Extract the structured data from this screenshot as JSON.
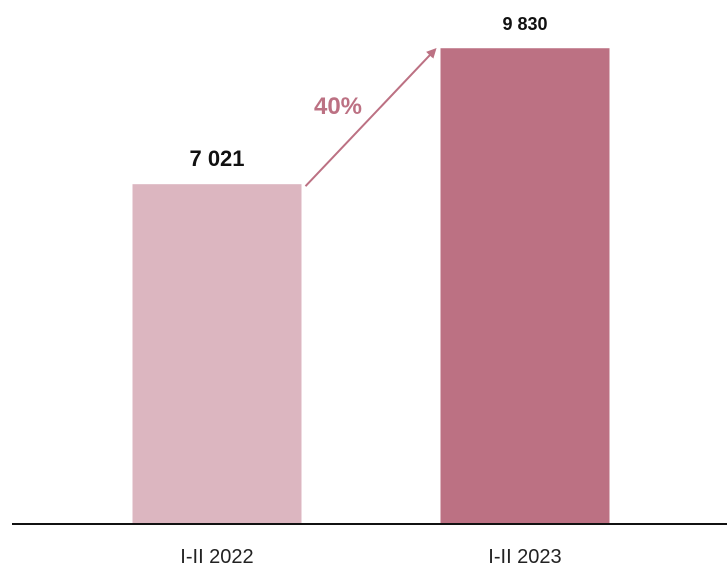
{
  "chart_data": {
    "type": "bar",
    "categories": [
      "I-II 2022",
      "I-II 2023"
    ],
    "values": [
      7021,
      9830
    ],
    "value_labels": [
      "7 021",
      "9 830"
    ],
    "colors": [
      "#dcb6c0",
      "#bc7183"
    ],
    "change_label": "40%",
    "change_color": "#bc7183",
    "title": "",
    "xlabel": "",
    "ylabel": "",
    "ylim": [
      0,
      10000
    ],
    "grid": false,
    "legend": "none"
  }
}
